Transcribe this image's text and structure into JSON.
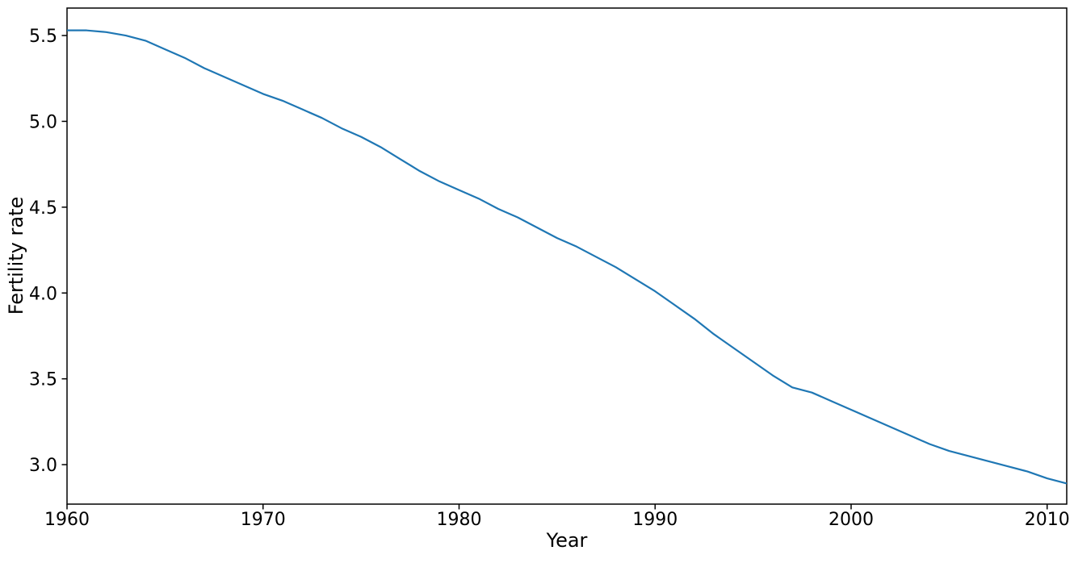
{
  "chart_data": {
    "type": "line",
    "title": "",
    "xlabel": "Year",
    "ylabel": "Fertility rate",
    "x": [
      1960,
      1961,
      1962,
      1963,
      1964,
      1965,
      1966,
      1967,
      1968,
      1969,
      1970,
      1971,
      1972,
      1973,
      1974,
      1975,
      1976,
      1977,
      1978,
      1979,
      1980,
      1981,
      1982,
      1983,
      1984,
      1985,
      1986,
      1987,
      1988,
      1989,
      1990,
      1991,
      1992,
      1993,
      1994,
      1995,
      1996,
      1997,
      1998,
      1999,
      2000,
      2001,
      2002,
      2003,
      2004,
      2005,
      2006,
      2007,
      2008,
      2009,
      2010,
      2011
    ],
    "series": [
      {
        "name": "Fertility rate",
        "color": "#1f77b4",
        "values": [
          5.53,
          5.53,
          5.52,
          5.5,
          5.47,
          5.42,
          5.37,
          5.31,
          5.26,
          5.21,
          5.16,
          5.12,
          5.07,
          5.02,
          4.96,
          4.91,
          4.85,
          4.78,
          4.71,
          4.65,
          4.6,
          4.55,
          4.49,
          4.44,
          4.38,
          4.32,
          4.27,
          4.21,
          4.15,
          4.08,
          4.01,
          3.93,
          3.85,
          3.76,
          3.68,
          3.6,
          3.52,
          3.45,
          3.42,
          3.37,
          3.32,
          3.27,
          3.22,
          3.17,
          3.12,
          3.08,
          3.05,
          3.02,
          2.99,
          2.96,
          2.92,
          2.89
        ]
      }
    ],
    "xlim": [
      1960,
      2011
    ],
    "ylim": [
      2.77,
      5.66
    ],
    "xtick_values": [
      1960,
      1970,
      1980,
      1990,
      2000,
      2010
    ],
    "xtick_labels": [
      "1960",
      "1970",
      "1980",
      "1990",
      "2000",
      "2010"
    ],
    "ytick_values": [
      3.0,
      3.5,
      4.0,
      4.5,
      5.0,
      5.5
    ],
    "ytick_labels": [
      "3.0",
      "3.5",
      "4.0",
      "4.5",
      "5.0",
      "5.5"
    ],
    "grid": false,
    "legend": "none",
    "line_color": "#1f77b4",
    "axis_color": "#000000",
    "background_color": "#ffffff"
  }
}
